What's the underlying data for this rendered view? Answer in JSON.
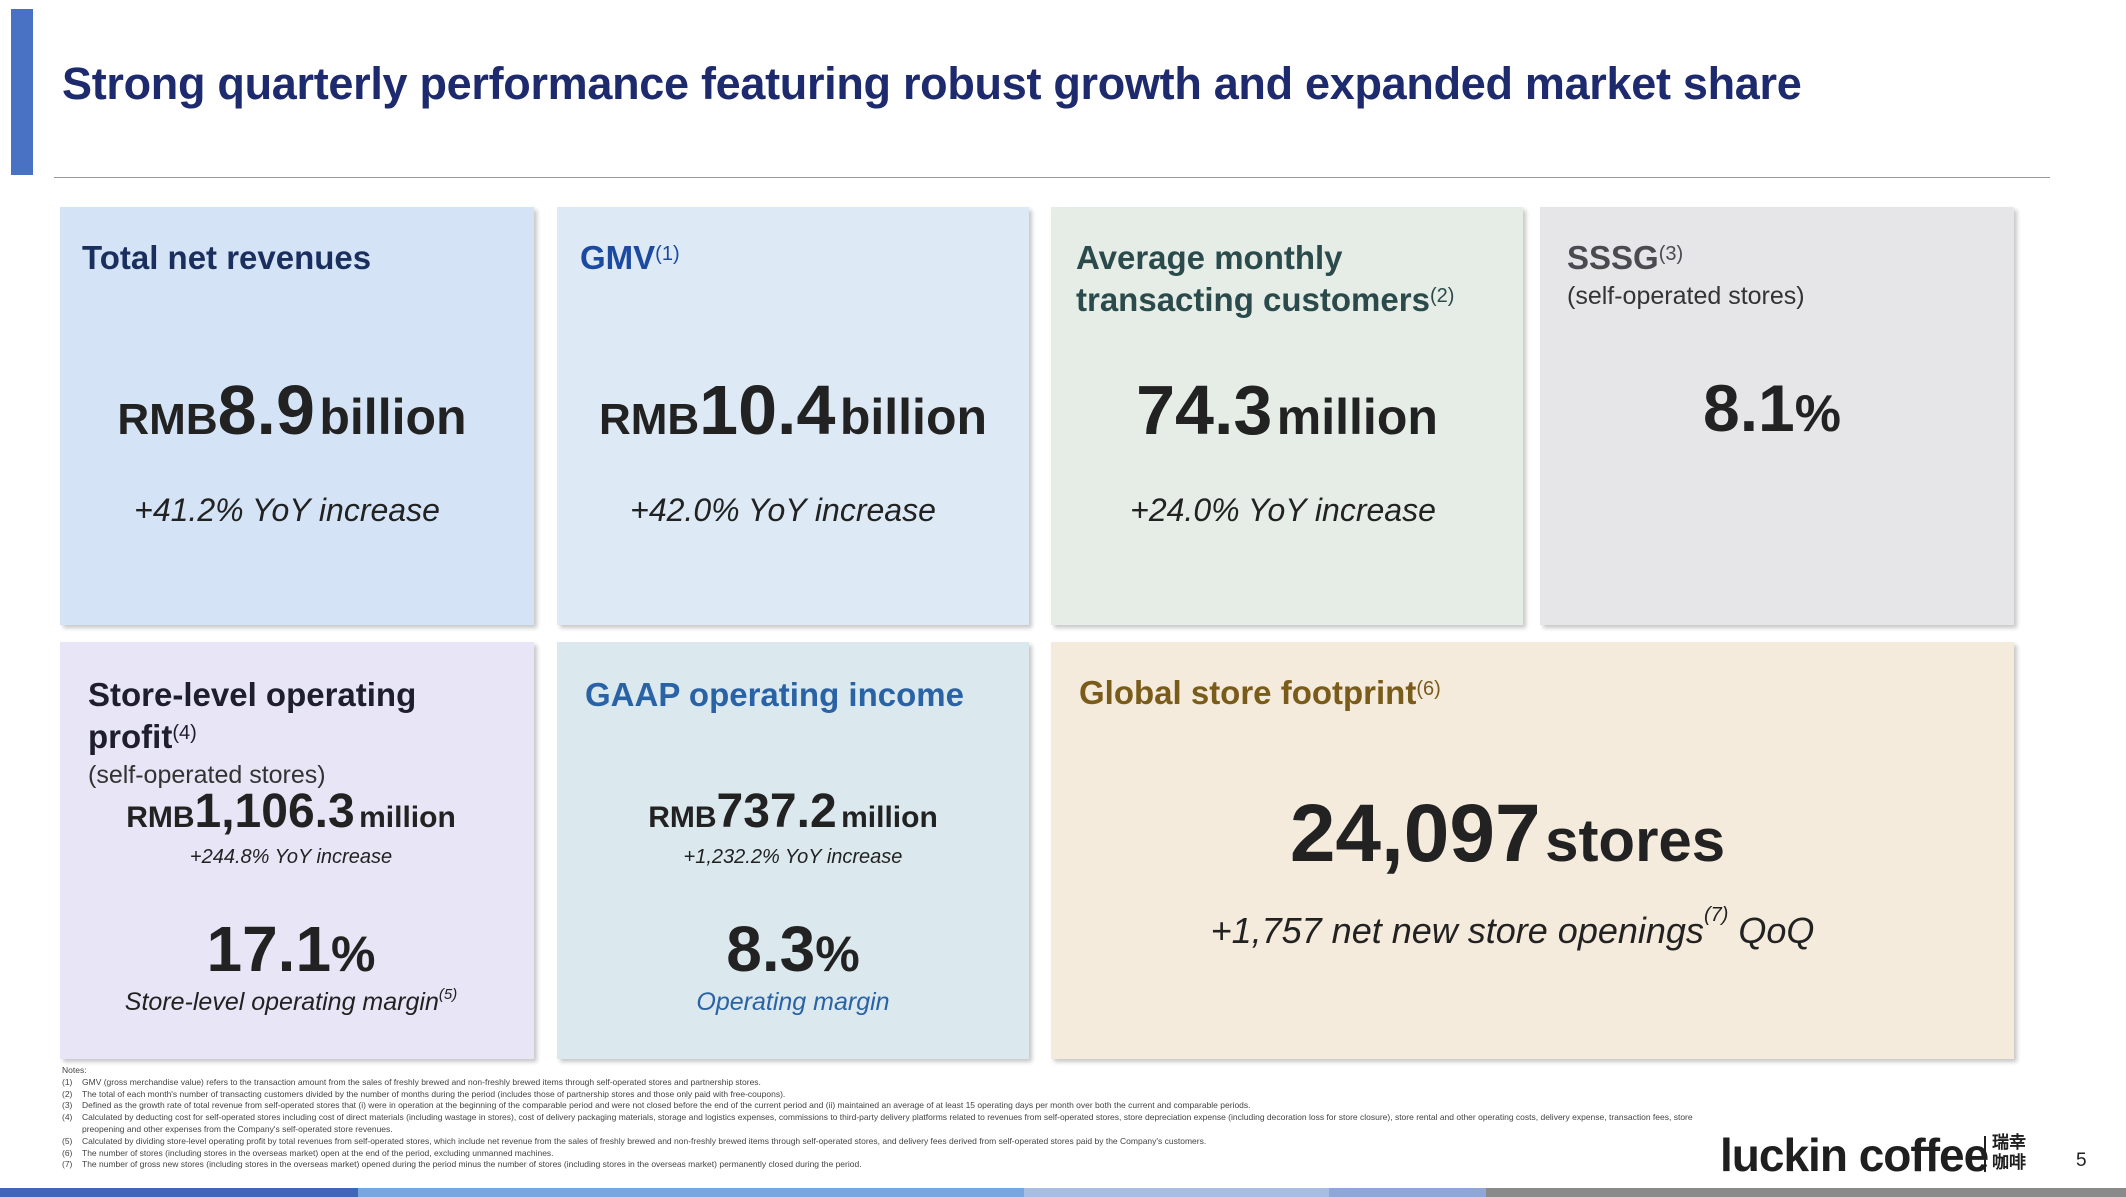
{
  "header": {
    "title": "Strong quarterly performance featuring robust growth and expanded market share"
  },
  "cards": {
    "revenues": {
      "heading": "Total net revenues",
      "currency": "RMB",
      "value": "8.9",
      "unit": "billion",
      "change": "+41.2% YoY increase"
    },
    "gmv": {
      "heading": "GMV",
      "note": "(1)",
      "currency": "RMB",
      "value": "10.4",
      "unit": "billion",
      "change": "+42.0% YoY increase"
    },
    "customers": {
      "heading_line1": "Average monthly",
      "heading_line2": "transacting customers",
      "note": "(2)",
      "value": "74.3",
      "unit": "million",
      "change": "+24.0% YoY increase"
    },
    "sssg": {
      "heading": "SSSG",
      "note": "(3)",
      "subheading": "(self-operated stores)",
      "value": "8.1",
      "unit": "%"
    },
    "store_profit": {
      "heading": "Store-level operating profit",
      "note": "(4)",
      "subheading": "(self-operated stores)",
      "currency": "RMB",
      "value": "1,106.3",
      "unit": "million",
      "change": "+244.8% YoY increase",
      "margin_value": "17.1",
      "margin_unit": "%",
      "margin_label": "Store-level operating margin",
      "margin_note": "(5)"
    },
    "gaap": {
      "heading": "GAAP operating income",
      "currency": "RMB",
      "value": "737.2",
      "unit": "million",
      "change": "+1,232.2% YoY increase",
      "margin_value": "8.3",
      "margin_unit": "%",
      "margin_label": "Operating margin"
    },
    "footprint": {
      "heading": "Global store footprint",
      "note": "(6)",
      "value": "24,097",
      "unit": "stores",
      "change_prefix": "+1,757 net new store openings",
      "change_note": "(7)",
      "change_suffix": "QoQ"
    }
  },
  "notes": {
    "label": "Notes:",
    "items": [
      {
        "k": "(1)",
        "t": "GMV (gross merchandise value) refers to the transaction amount from the sales of freshly brewed and non-freshly brewed items through self-operated stores and partnership stores."
      },
      {
        "k": "(2)",
        "t": "The total of each month's number of transacting customers divided by the number of months during the period (includes those of partnership stores and those only paid with free-coupons)."
      },
      {
        "k": "(3)",
        "t": "Defined as the growth rate of total revenue from self-operated stores that (i) were in operation at the beginning of the comparable period and were not closed before the end of the current period and (ii) maintained an average of at least 15 operating days per month over both the current and comparable periods."
      },
      {
        "k": "(4)",
        "t": "Calculated by deducting cost for self-operated stores including cost of direct materials (including wastage in stores), cost of delivery packaging materials, storage and logistics expenses, commissions to third-party delivery platforms related to revenues from self-operated stores, store depreciation expense (including decoration loss for store closure), store rental and other operating costs, delivery expense, transaction fees, store preopening and other expenses from the Company's self-operated store revenues."
      },
      {
        "k": "(5)",
        "t": "Calculated by dividing store-level operating profit by total revenues from self-operated stores, which include net revenue from the sales of freshly brewed and non-freshly brewed items through self-operated stores, and delivery fees derived from self-operated stores paid by the Company's customers."
      },
      {
        "k": "(6)",
        "t": "The number of stores (including stores in the overseas market) open at the end of the period, excluding unmanned machines."
      },
      {
        "k": "(7)",
        "t": "The number of gross new stores (including stores in the overseas market) opened during the period minus the number of stores (including stores in the overseas market) permanently closed during the period."
      }
    ]
  },
  "footer": {
    "logo": "luckin coffee",
    "logo_cn_line1": "瑞幸",
    "logo_cn_line2": "咖啡",
    "page_number": "5"
  },
  "colors": {
    "title": "#1e2a6e",
    "accent": "#4a72c4",
    "revenues_heading": "#1b2f5e",
    "gmv_heading": "#1c4aa0",
    "customers_heading": "#2b4a4c",
    "sssg_heading": "#4a4a50",
    "store_profit_heading": "#1e1e2e",
    "gaap_heading": "#2a62a6",
    "footprint_heading": "#7a5c1a"
  }
}
